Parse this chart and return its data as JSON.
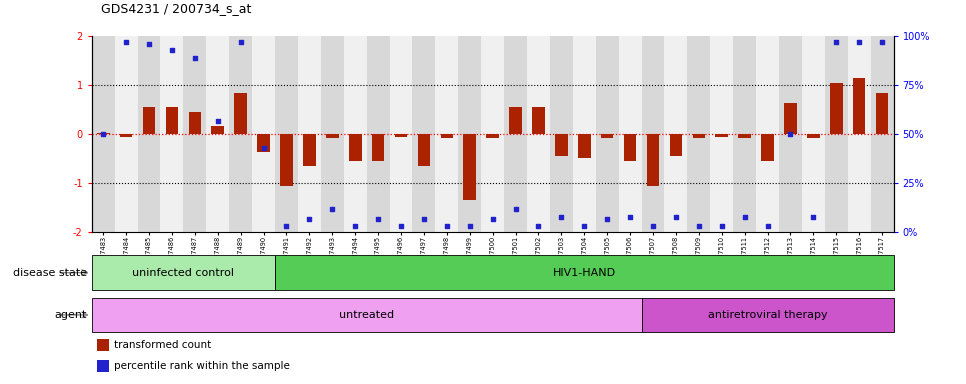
{
  "title": "GDS4231 / 200734_s_at",
  "samples": [
    "GSM697483",
    "GSM697484",
    "GSM697485",
    "GSM697486",
    "GSM697487",
    "GSM697488",
    "GSM697489",
    "GSM697490",
    "GSM697491",
    "GSM697492",
    "GSM697493",
    "GSM697494",
    "GSM697495",
    "GSM697496",
    "GSM697497",
    "GSM697498",
    "GSM697499",
    "GSM697500",
    "GSM697501",
    "GSM697502",
    "GSM697503",
    "GSM697504",
    "GSM697505",
    "GSM697506",
    "GSM697507",
    "GSM697508",
    "GSM697509",
    "GSM697510",
    "GSM697511",
    "GSM697512",
    "GSM697513",
    "GSM697514",
    "GSM697515",
    "GSM697516",
    "GSM697517"
  ],
  "bar_values": [
    0.02,
    -0.05,
    0.55,
    0.55,
    0.45,
    0.18,
    0.85,
    -0.35,
    -1.05,
    -0.65,
    -0.08,
    -0.55,
    -0.55,
    -0.05,
    -0.65,
    -0.08,
    -1.35,
    -0.08,
    0.55,
    0.55,
    -0.45,
    -0.48,
    -0.08,
    -0.55,
    -1.05,
    -0.45,
    -0.08,
    -0.05,
    -0.08,
    -0.55,
    0.65,
    -0.08,
    1.05,
    1.15,
    0.85
  ],
  "blue_values": [
    50,
    97,
    96,
    93,
    89,
    57,
    97,
    43,
    3,
    7,
    12,
    3,
    7,
    3,
    7,
    3,
    3,
    7,
    12,
    3,
    8,
    3,
    7,
    8,
    3,
    8,
    3,
    3,
    8,
    3,
    50,
    8,
    97,
    97,
    97
  ],
  "bar_color": "#AA2200",
  "dot_color": "#2222CC",
  "bg_even": "#d8d8d8",
  "bg_odd": "#f0f0f0",
  "ylim_left": [
    -2,
    2
  ],
  "ylim_right": [
    0,
    100
  ],
  "yticks_left": [
    -2,
    -1,
    0,
    1,
    2
  ],
  "yticks_right": [
    0,
    25,
    50,
    75,
    100
  ],
  "ytick_labels_right": [
    "0%",
    "25%",
    "50%",
    "75%",
    "100%"
  ],
  "disease_state_groups": [
    {
      "label": "uninfected control",
      "start": 0,
      "end": 8,
      "color": "#aaeaaa"
    },
    {
      "label": "HIV1-HAND",
      "start": 8,
      "end": 35,
      "color": "#55cc55"
    }
  ],
  "agent_groups": [
    {
      "label": "untreated",
      "start": 0,
      "end": 24,
      "color": "#f0a0f0"
    },
    {
      "label": "antiretroviral therapy",
      "start": 24,
      "end": 35,
      "color": "#cc55cc"
    }
  ],
  "legend_items": [
    {
      "color": "#AA2200",
      "label": "transformed count"
    },
    {
      "color": "#2222CC",
      "label": "percentile rank within the sample"
    }
  ],
  "disease_state_label": "disease state",
  "agent_label": "agent",
  "bar_width": 0.55
}
